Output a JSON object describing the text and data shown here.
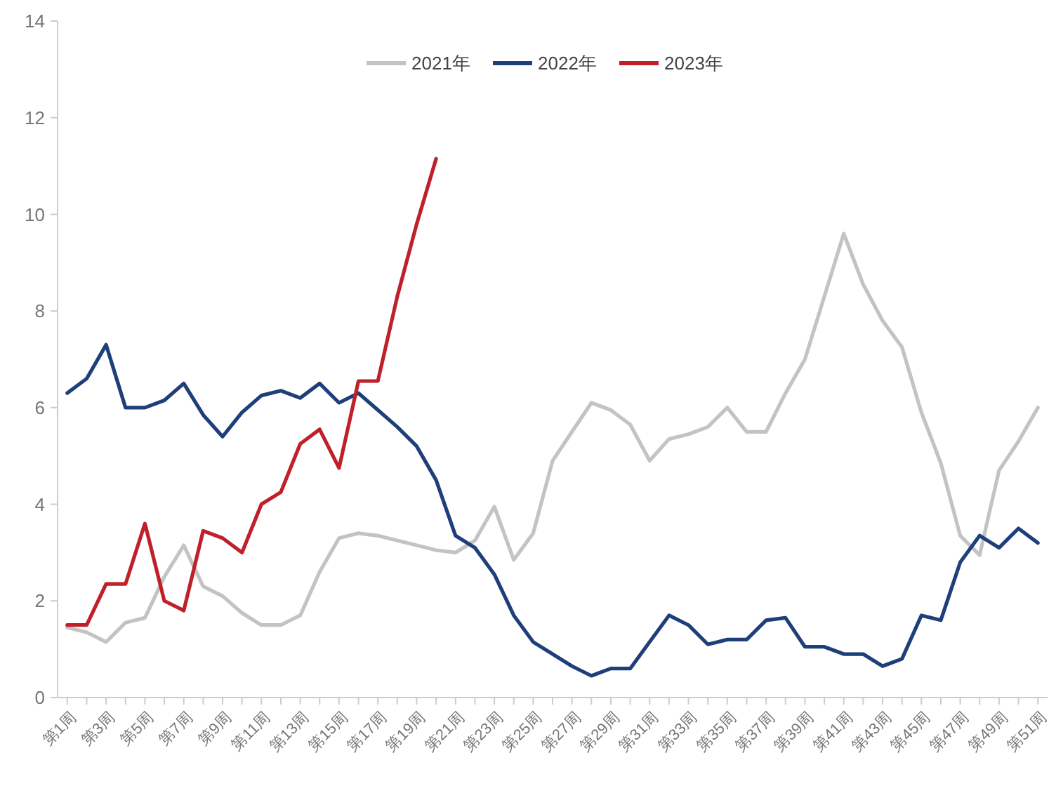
{
  "chart_data": {
    "type": "line",
    "categories": [
      "第1周",
      null,
      "第3周",
      null,
      "第5周",
      null,
      "第7周",
      null,
      "第9周",
      null,
      "第11周",
      null,
      "第13周",
      null,
      "第15周",
      null,
      "第17周",
      null,
      "第19周",
      null,
      "第21周",
      null,
      "第23周",
      null,
      "第25周",
      null,
      "第27周",
      null,
      "第29周",
      null,
      "第31周",
      null,
      "第33周",
      null,
      "第35周",
      null,
      "第37周",
      null,
      "第39周",
      null,
      "第41周",
      null,
      "第43周",
      null,
      "第45周",
      null,
      "第47周",
      null,
      "第49周",
      null,
      "第51周"
    ],
    "series": [
      {
        "name": "2021年",
        "color": "#c3c3c3",
        "values": [
          1.45,
          1.35,
          1.15,
          1.55,
          1.65,
          2.5,
          3.15,
          2.3,
          2.1,
          1.75,
          1.5,
          1.5,
          1.7,
          2.6,
          3.3,
          3.4,
          3.35,
          3.25,
          3.15,
          3.05,
          3.0,
          3.25,
          3.95,
          2.85,
          3.4,
          4.9,
          5.5,
          6.1,
          5.95,
          5.65,
          4.9,
          5.35,
          5.45,
          5.6,
          6.0,
          5.5,
          5.5,
          6.3,
          7.0,
          8.3,
          9.6,
          8.55,
          7.8,
          7.25,
          5.9,
          4.85,
          3.35,
          2.95,
          4.7,
          5.3,
          6.0
        ]
      },
      {
        "name": "2022年",
        "color": "#1f3f7a",
        "values": [
          6.3,
          6.6,
          7.3,
          6.0,
          6.0,
          6.15,
          6.5,
          5.85,
          5.4,
          5.9,
          6.25,
          6.35,
          6.2,
          6.5,
          6.1,
          6.3,
          5.95,
          5.6,
          5.2,
          4.5,
          3.35,
          3.1,
          2.55,
          1.7,
          1.15,
          0.9,
          0.65,
          0.45,
          0.6,
          0.6,
          1.15,
          1.7,
          1.5,
          1.1,
          1.2,
          1.2,
          1.6,
          1.65,
          1.05,
          1.05,
          0.9,
          0.9,
          0.65,
          0.8,
          1.7,
          1.6,
          2.8,
          3.35,
          3.1,
          3.5,
          3.2
        ]
      },
      {
        "name": "2023年",
        "color": "#c0202a",
        "values": [
          1.5,
          1.5,
          2.35,
          2.35,
          3.6,
          2.0,
          1.8,
          3.45,
          3.3,
          3.0,
          4.0,
          4.25,
          5.25,
          5.55,
          4.75,
          6.55,
          6.55,
          8.3,
          9.8,
          11.15,
          null,
          null,
          null,
          null,
          null,
          null,
          null,
          null,
          null,
          null,
          null,
          null,
          null,
          null,
          null,
          null,
          null,
          null,
          null,
          null,
          null,
          null,
          null,
          null,
          null,
          null,
          null,
          null,
          null,
          null,
          null
        ]
      }
    ],
    "ylim": [
      0,
      14
    ],
    "yticks": [
      0,
      2,
      4,
      6,
      8,
      10,
      12,
      14
    ],
    "grid": false,
    "legend": "top",
    "marker": "none",
    "line_style": "solid"
  }
}
